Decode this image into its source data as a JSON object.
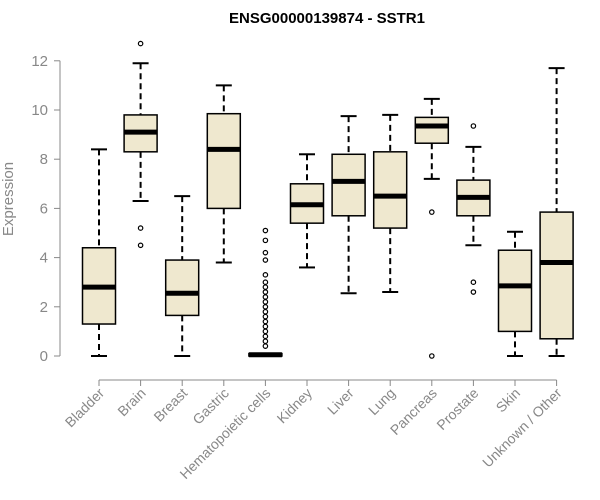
{
  "chart_data": {
    "type": "boxplot",
    "title": "ENSG00000139874 - SSTR1",
    "xlabel": "",
    "ylabel": "Expression",
    "ylim": [
      0,
      12.5
    ],
    "yticks": [
      0,
      2,
      4,
      6,
      8,
      10,
      12
    ],
    "grid": false,
    "box_color": "#efe8cf",
    "line_color": "#000000",
    "axis_color": "#888888",
    "categories": [
      "Bladder",
      "Brain",
      "Breast",
      "Gastric",
      "Hematopoietic cells",
      "Kidney",
      "Liver",
      "Lung",
      "Pancreas",
      "Prostate",
      "Skin",
      "Unknown / Other"
    ],
    "series": [
      {
        "name": "Bladder",
        "whisker_low": 0.0,
        "q1": 1.3,
        "median": 2.8,
        "q3": 4.4,
        "whisker_high": 8.4,
        "outliers": []
      },
      {
        "name": "Brain",
        "whisker_low": 6.3,
        "q1": 8.3,
        "median": 9.1,
        "q3": 9.8,
        "whisker_high": 11.9,
        "outliers": [
          12.7,
          5.2,
          4.5
        ]
      },
      {
        "name": "Breast",
        "whisker_low": 0.0,
        "q1": 1.65,
        "median": 2.55,
        "q3": 3.9,
        "whisker_high": 6.5,
        "outliers": []
      },
      {
        "name": "Gastric",
        "whisker_low": 3.8,
        "q1": 6.0,
        "median": 8.4,
        "q3": 9.85,
        "whisker_high": 11.0,
        "outliers": []
      },
      {
        "name": "Hematopoietic cells",
        "whisker_low": 0.0,
        "q1": 0.0,
        "median": 0.05,
        "q3": 0.1,
        "whisker_high": 0.1,
        "outliers": [
          5.1,
          4.7,
          4.2,
          3.9,
          3.3,
          3.0,
          2.8,
          2.6,
          2.4,
          2.2,
          2.0,
          1.8,
          1.6,
          1.4,
          1.2,
          1.0,
          0.8,
          0.6,
          0.4
        ]
      },
      {
        "name": "Kidney",
        "whisker_low": 3.6,
        "q1": 5.4,
        "median": 6.15,
        "q3": 7.0,
        "whisker_high": 8.2,
        "outliers": []
      },
      {
        "name": "Liver",
        "whisker_low": 2.55,
        "q1": 5.7,
        "median": 7.1,
        "q3": 8.2,
        "whisker_high": 9.75,
        "outliers": []
      },
      {
        "name": "Lung",
        "whisker_low": 2.6,
        "q1": 5.2,
        "median": 6.5,
        "q3": 8.3,
        "whisker_high": 9.8,
        "outliers": []
      },
      {
        "name": "Pancreas",
        "whisker_low": 7.2,
        "q1": 8.65,
        "median": 9.35,
        "q3": 9.7,
        "whisker_high": 10.45,
        "outliers": [
          5.85,
          0.0
        ]
      },
      {
        "name": "Prostate",
        "whisker_low": 4.5,
        "q1": 5.7,
        "median": 6.45,
        "q3": 7.15,
        "whisker_high": 8.5,
        "outliers": [
          9.35,
          3.0,
          2.6
        ]
      },
      {
        "name": "Skin",
        "whisker_low": 0.0,
        "q1": 1.0,
        "median": 2.85,
        "q3": 4.3,
        "whisker_high": 5.05,
        "outliers": []
      },
      {
        "name": "Unknown / Other",
        "whisker_low": 0.0,
        "q1": 0.7,
        "median": 3.8,
        "q3": 5.85,
        "whisker_high": 11.7,
        "outliers": []
      }
    ]
  }
}
